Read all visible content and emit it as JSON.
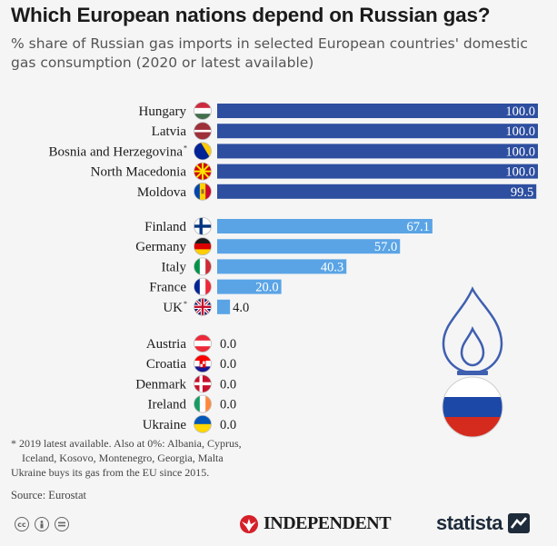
{
  "header": {
    "title": "Which European nations depend on Russian gas?",
    "subtitle": "% share of Russian gas imports in selected European countries' domestic gas consumption (2020 or latest available)"
  },
  "chart_data": {
    "type": "bar",
    "orientation": "horizontal",
    "title": "Which European nations depend on Russian gas?",
    "subtitle": "% share of Russian gas imports in selected European countries' domestic gas consumption (2020 or latest available)",
    "xlim": [
      0,
      100
    ],
    "grid": false,
    "groups": [
      {
        "color": "#2e4fa0",
        "items": [
          {
            "label": "Hungary",
            "value": 100.0,
            "display": "100.0",
            "flag": "hungary-flag"
          },
          {
            "label": "Latvia",
            "value": 100.0,
            "display": "100.0",
            "flag": "latvia-flag"
          },
          {
            "label": "Bosnia and Herzegovina",
            "marker": "*",
            "value": 100.0,
            "display": "100.0",
            "flag": "bosnia-flag"
          },
          {
            "label": "North Macedonia",
            "value": 100.0,
            "display": "100.0",
            "flag": "north-macedonia-flag"
          },
          {
            "label": "Moldova",
            "value": 99.5,
            "display": "99.5",
            "flag": "moldova-flag"
          }
        ]
      },
      {
        "color": "#5aa4e6",
        "items": [
          {
            "label": "Finland",
            "value": 67.1,
            "display": "67.1",
            "flag": "finland-flag"
          },
          {
            "label": "Germany",
            "value": 57.0,
            "display": "57.0",
            "flag": "germany-flag"
          },
          {
            "label": "Italy",
            "value": 40.3,
            "display": "40.3",
            "flag": "italy-flag"
          },
          {
            "label": "France",
            "value": 20.0,
            "display": "20.0",
            "flag": "france-flag"
          },
          {
            "label": "UK",
            "marker": "*",
            "value": 4.0,
            "display": "4.0",
            "flag": "uk-flag"
          }
        ]
      },
      {
        "color": "#9cc7ef",
        "items": [
          {
            "label": "Austria",
            "value": 0.0,
            "display": "0.0",
            "flag": "austria-flag"
          },
          {
            "label": "Croatia",
            "value": 0.0,
            "display": "0.0",
            "flag": "croatia-flag"
          },
          {
            "label": "Denmark",
            "value": 0.0,
            "display": "0.0",
            "flag": "denmark-flag"
          },
          {
            "label": "Ireland",
            "value": 0.0,
            "display": "0.0",
            "flag": "ireland-flag"
          },
          {
            "label": "Ukraine",
            "value": 0.0,
            "display": "0.0",
            "flag": "ukraine-flag"
          }
        ]
      }
    ]
  },
  "footnote": {
    "line1": "* 2019  latest available. Also at 0%: Albania, Cyprus,",
    "line2": "Iceland, Kosovo, Montenegro, Georgia, Malta",
    "line3": "Ukraine buys its gas from the EU since 2015."
  },
  "source": "Source: Eurostat",
  "brands": {
    "publisher": "INDEPENDENT",
    "statista": "statista"
  },
  "colors": {
    "full_dependency": "#2e4fa0",
    "partial_dependency": "#5aa4e6",
    "flame": "#3f5fb0",
    "background": "#f5f5f5"
  },
  "icons": [
    "gas-flame-icon",
    "russia-flag-icon",
    "cc-license-icon",
    "cc-by-icon",
    "cc-nd-icon",
    "eagle-logo-icon",
    "statista-logo-icon"
  ]
}
